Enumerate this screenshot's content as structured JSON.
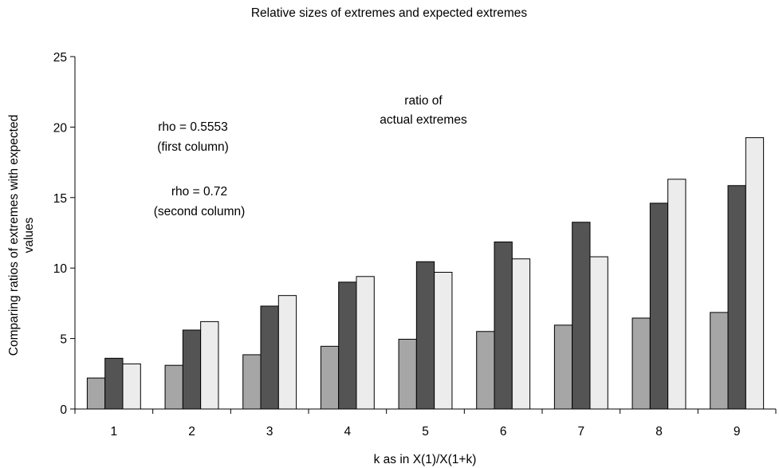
{
  "chart_data": {
    "type": "bar",
    "title": "Relative sizes of extremes and expected extremes",
    "xlabel": "k as in X(1)/X(1+k)",
    "ylabel_lines": [
      "Comparing ratios of extremes with expected",
      "values"
    ],
    "ylim": [
      0,
      25
    ],
    "yticks": [
      0,
      5,
      10,
      15,
      20,
      25
    ],
    "grid": false,
    "categories": [
      "1",
      "2",
      "3",
      "4",
      "5",
      "6",
      "7",
      "8",
      "9"
    ],
    "series": [
      {
        "color": "#a6a6a6",
        "values": [
          2.2,
          3.1,
          3.85,
          4.45,
          4.95,
          5.5,
          5.95,
          6.45,
          6.85
        ]
      },
      {
        "color": "#545454",
        "values": [
          3.6,
          5.6,
          7.3,
          9.0,
          10.45,
          11.85,
          13.25,
          14.6,
          15.85
        ]
      },
      {
        "color": "#ececec",
        "values": [
          3.2,
          6.2,
          8.05,
          9.4,
          9.7,
          10.65,
          10.8,
          16.3,
          19.25
        ]
      }
    ],
    "annotations": [
      {
        "id": "rho1",
        "lines": [
          "rho = 0.5553",
          "(first column)"
        ]
      },
      {
        "id": "rho2",
        "lines": [
          "rho = 0.72",
          "(second column)"
        ]
      },
      {
        "id": "ratio",
        "lines": [
          "ratio of",
          "actual extremes"
        ]
      }
    ]
  }
}
